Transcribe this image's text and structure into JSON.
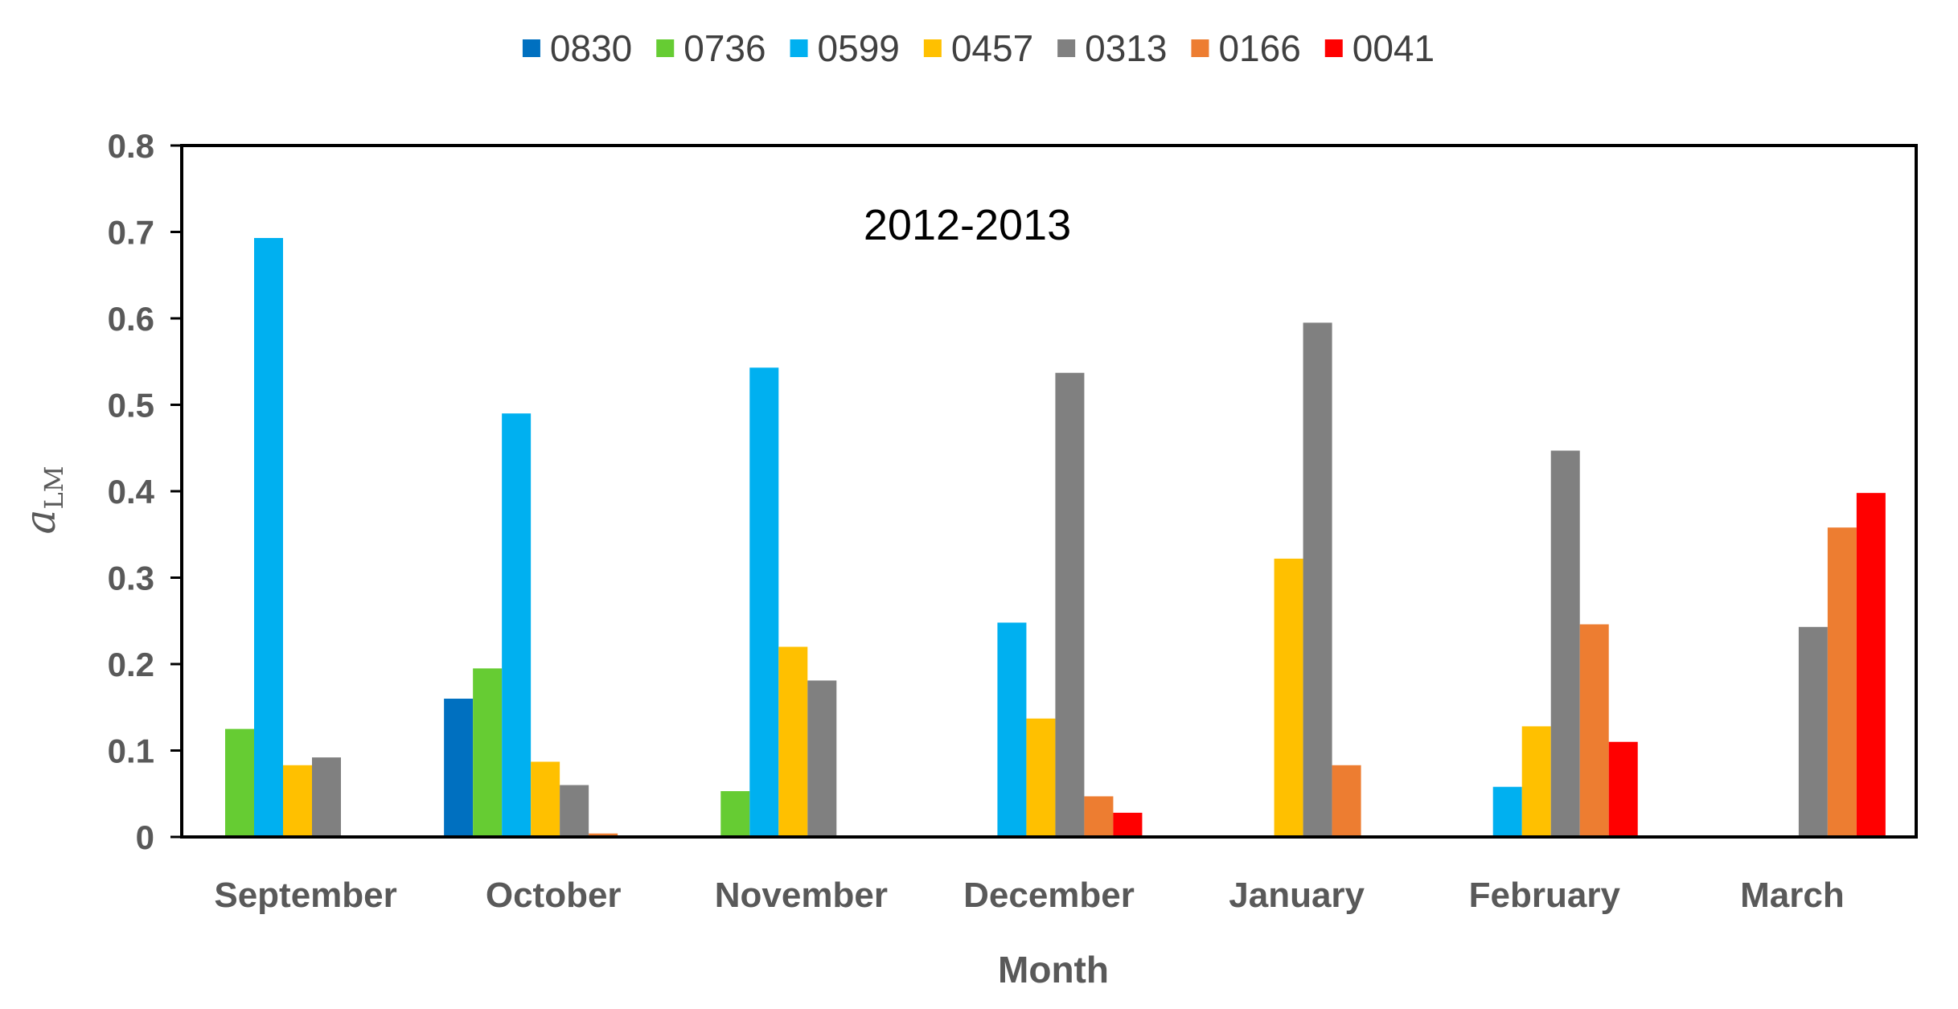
{
  "chart_data": {
    "type": "bar",
    "annotation": "2012-2013",
    "xlabel": "Month",
    "ylabel": {
      "main": "a",
      "subscript": "LM"
    },
    "ylim": [
      0,
      0.8
    ],
    "yticks": [
      0,
      0.1,
      0.2,
      0.3,
      0.4,
      0.5,
      0.6,
      0.7,
      0.8
    ],
    "ytick_labels": [
      "0",
      "0.1",
      "0.2",
      "0.3",
      "0.4",
      "0.5",
      "0.6",
      "0.7",
      "0.8"
    ],
    "grid": false,
    "legend_position": "top",
    "categories": [
      "September",
      "October",
      "November",
      "December",
      "January",
      "February",
      "March"
    ],
    "series": [
      {
        "name": "0830",
        "color": "#0070C0",
        "values": [
          0,
          0.16,
          0,
          0,
          0,
          0,
          0
        ]
      },
      {
        "name": "0736",
        "color": "#66CC33",
        "values": [
          0.125,
          0.195,
          0.053,
          0,
          0,
          0,
          0
        ]
      },
      {
        "name": "0599",
        "color": "#00B0F0",
        "values": [
          0.693,
          0.49,
          0.543,
          0.248,
          0,
          0.058,
          0
        ]
      },
      {
        "name": "0457",
        "color": "#FFC000",
        "values": [
          0.083,
          0.087,
          0.22,
          0.137,
          0.322,
          0.128,
          0
        ]
      },
      {
        "name": "0313",
        "color": "#808080",
        "values": [
          0.092,
          0.06,
          0.181,
          0.537,
          0.595,
          0.447,
          0.243
        ]
      },
      {
        "name": "0166",
        "color": "#ED7D31",
        "values": [
          0,
          0.004,
          0,
          0.047,
          0.083,
          0.246,
          0.358
        ]
      },
      {
        "name": "0041",
        "color": "#FF0000",
        "values": [
          0,
          0,
          0,
          0.028,
          0,
          0.11,
          0.398
        ]
      }
    ]
  }
}
